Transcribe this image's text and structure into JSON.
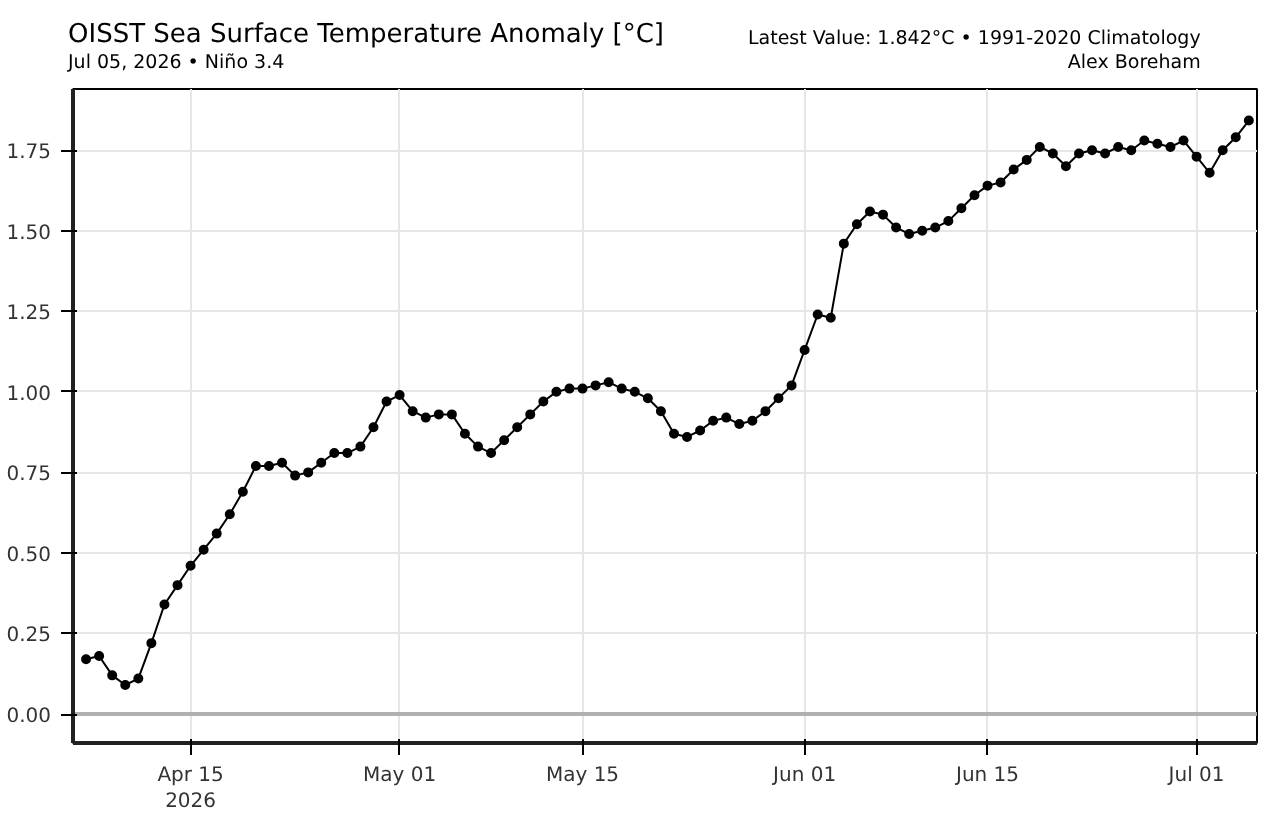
{
  "chart_data": {
    "type": "line",
    "title": "OISST Sea Surface Temperature Anomaly [°C]",
    "subtitle": "Jul 05, 2026 • Niño 3.4",
    "annotations": [
      "Latest Value: 1.842°C • 1991-2020 Climatology",
      "Alex Boreham"
    ],
    "x": [
      "2026-04-07",
      "2026-04-08",
      "2026-04-09",
      "2026-04-10",
      "2026-04-11",
      "2026-04-12",
      "2026-04-13",
      "2026-04-14",
      "2026-04-15",
      "2026-04-16",
      "2026-04-17",
      "2026-04-18",
      "2026-04-19",
      "2026-04-20",
      "2026-04-21",
      "2026-04-22",
      "2026-04-23",
      "2026-04-24",
      "2026-04-25",
      "2026-04-26",
      "2026-04-27",
      "2026-04-28",
      "2026-04-29",
      "2026-04-30",
      "2026-05-01",
      "2026-05-02",
      "2026-05-03",
      "2026-05-04",
      "2026-05-05",
      "2026-05-06",
      "2026-05-07",
      "2026-05-08",
      "2026-05-09",
      "2026-05-10",
      "2026-05-11",
      "2026-05-12",
      "2026-05-13",
      "2026-05-14",
      "2026-05-15",
      "2026-05-16",
      "2026-05-17",
      "2026-05-18",
      "2026-05-19",
      "2026-05-20",
      "2026-05-21",
      "2026-05-22",
      "2026-05-23",
      "2026-05-24",
      "2026-05-25",
      "2026-05-26",
      "2026-05-27",
      "2026-05-28",
      "2026-05-29",
      "2026-05-30",
      "2026-05-31",
      "2026-06-01",
      "2026-06-02",
      "2026-06-03",
      "2026-06-04",
      "2026-06-05",
      "2026-06-06",
      "2026-06-07",
      "2026-06-08",
      "2026-06-09",
      "2026-06-10",
      "2026-06-11",
      "2026-06-12",
      "2026-06-13",
      "2026-06-14",
      "2026-06-15",
      "2026-06-16",
      "2026-06-17",
      "2026-06-18",
      "2026-06-19",
      "2026-06-20",
      "2026-06-21",
      "2026-06-22",
      "2026-06-23",
      "2026-06-24",
      "2026-06-25",
      "2026-06-26",
      "2026-06-27",
      "2026-06-28",
      "2026-06-29",
      "2026-06-30",
      "2026-07-01",
      "2026-07-02",
      "2026-07-03",
      "2026-07-04",
      "2026-07-05"
    ],
    "series": [
      {
        "color": "#000000",
        "values": [
          0.17,
          0.18,
          0.12,
          0.09,
          0.11,
          0.22,
          0.34,
          0.4,
          0.46,
          0.51,
          0.56,
          0.62,
          0.69,
          0.77,
          0.77,
          0.78,
          0.74,
          0.75,
          0.78,
          0.81,
          0.81,
          0.83,
          0.89,
          0.97,
          0.99,
          0.94,
          0.92,
          0.93,
          0.93,
          0.87,
          0.83,
          0.81,
          0.85,
          0.89,
          0.93,
          0.97,
          1.0,
          1.01,
          1.01,
          1.02,
          1.03,
          1.01,
          1.0,
          0.98,
          0.94,
          0.87,
          0.86,
          0.88,
          0.91,
          0.92,
          0.9,
          0.91,
          0.94,
          0.98,
          1.02,
          1.13,
          1.24,
          1.23,
          1.46,
          1.52,
          1.56,
          1.55,
          1.51,
          1.49,
          1.5,
          1.51,
          1.53,
          1.57,
          1.61,
          1.64,
          1.65,
          1.69,
          1.72,
          1.76,
          1.74,
          1.7,
          1.74,
          1.75,
          1.74,
          1.76,
          1.75,
          1.78,
          1.77,
          1.76,
          1.78,
          1.73,
          1.68,
          1.75,
          1.79,
          1.842
        ]
      }
    ],
    "xlim": [
      "2026-04-06",
      "2026-07-05T15:00"
    ],
    "xticks": [
      {
        "value": "2026-04-15",
        "label": "Apr 15\n2026"
      },
      {
        "value": "2026-05-01",
        "label": "May 01"
      },
      {
        "value": "2026-05-15",
        "label": "May 15"
      },
      {
        "value": "2026-06-01",
        "label": "Jun 01"
      },
      {
        "value": "2026-06-15",
        "label": "Jun 15"
      },
      {
        "value": "2026-07-01",
        "label": "Jul 01"
      }
    ],
    "ylim": [
      -0.09,
      1.94
    ],
    "yticks": [
      {
        "value": 0,
        "label": "0.00"
      },
      {
        "value": 0.25,
        "label": "0.25"
      },
      {
        "value": 0.5,
        "label": "0.50"
      },
      {
        "value": 0.75,
        "label": "0.75"
      },
      {
        "value": 1,
        "label": "1.00"
      },
      {
        "value": 1.25,
        "label": "1.25"
      },
      {
        "value": 1.5,
        "label": "1.50"
      },
      {
        "value": 1.75,
        "label": "1.75"
      }
    ],
    "ref_lines": [
      {
        "axis": "y",
        "value": 0,
        "color": "#b0b0b0"
      }
    ],
    "grid": true,
    "marker": "circle",
    "line_style": "solid"
  }
}
